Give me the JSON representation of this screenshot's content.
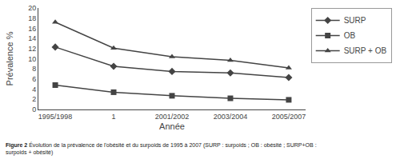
{
  "chart_data": {
    "type": "line",
    "x_label": "Année",
    "y_label": "Prévalence %",
    "categories": [
      "1995/1998",
      "1",
      "2001/2002",
      "2003/2004",
      "2005/2007"
    ],
    "series": [
      {
        "name": "SURP",
        "color": "#444444",
        "marker": "diamond",
        "values": [
          12.3,
          8.5,
          7.5,
          7.2,
          6.3
        ]
      },
      {
        "name": "OB",
        "color": "#444444",
        "marker": "square",
        "values": [
          4.8,
          3.4,
          2.7,
          2.2,
          1.9
        ]
      },
      {
        "name": "SURP + OB",
        "color": "#444444",
        "marker": "triangle-up",
        "values": [
          17.2,
          12.1,
          10.4,
          9.7,
          8.2
        ]
      }
    ],
    "ylim": [
      0,
      20
    ],
    "yticks": [
      0,
      2,
      4,
      6,
      8,
      10,
      12,
      14,
      16,
      18,
      20
    ],
    "grid": false,
    "legend": "upper right",
    "annotations": [
      "Figure 2 ",
      "Évolution de la prévalence de l'obésité et du surpoids de 1995 à 2007 (SURP : surpoids ; OB : obésité ; SURP+OB :\nsurpoids + obésité)"
    ]
  }
}
